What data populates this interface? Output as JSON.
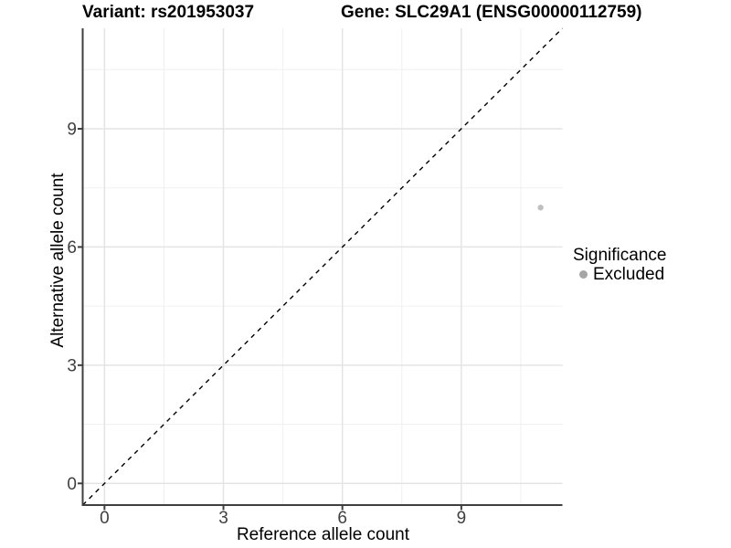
{
  "chart_data": {
    "type": "scatter",
    "title_left": "Variant: rs201953037",
    "title_right": "Gene: SLC29A1 (ENSG00000112759)",
    "xlabel": "Reference allele count",
    "ylabel": "Alternative allele count",
    "xlim": [
      -0.55,
      11.55
    ],
    "ylim": [
      -0.55,
      11.55
    ],
    "x_ticks": [
      0,
      3,
      6,
      9
    ],
    "y_ticks": [
      0,
      3,
      6,
      9
    ],
    "x_minor_ticks": [
      1.5,
      4.5,
      7.5,
      10.5
    ],
    "y_minor_ticks": [
      1.5,
      4.5,
      7.5,
      10.5
    ],
    "grid": "major+minor",
    "identity_line": {
      "style": "dashed",
      "equation": "y = x",
      "from": [
        -0.55,
        -0.55
      ],
      "to": [
        11.55,
        11.55
      ]
    },
    "series": [
      {
        "name": "Excluded",
        "points": [
          {
            "x": 11,
            "y": 7
          }
        ]
      }
    ],
    "legend": {
      "title": "Significance",
      "position": "right",
      "entries": [
        {
          "label": "Excluded",
          "color": "#a6a6a6"
        }
      ]
    }
  },
  "colors": {
    "background": "#ffffff",
    "panel_background": "#ffffff",
    "grid_major": "#e4e4e4",
    "grid_minor": "#f0f0f0",
    "axis_line": "#3f3f3f",
    "tick_label": "#404040",
    "identity_line": "#000000",
    "point": "#bfbfbf",
    "legend_dot": "#a6a6a6"
  }
}
